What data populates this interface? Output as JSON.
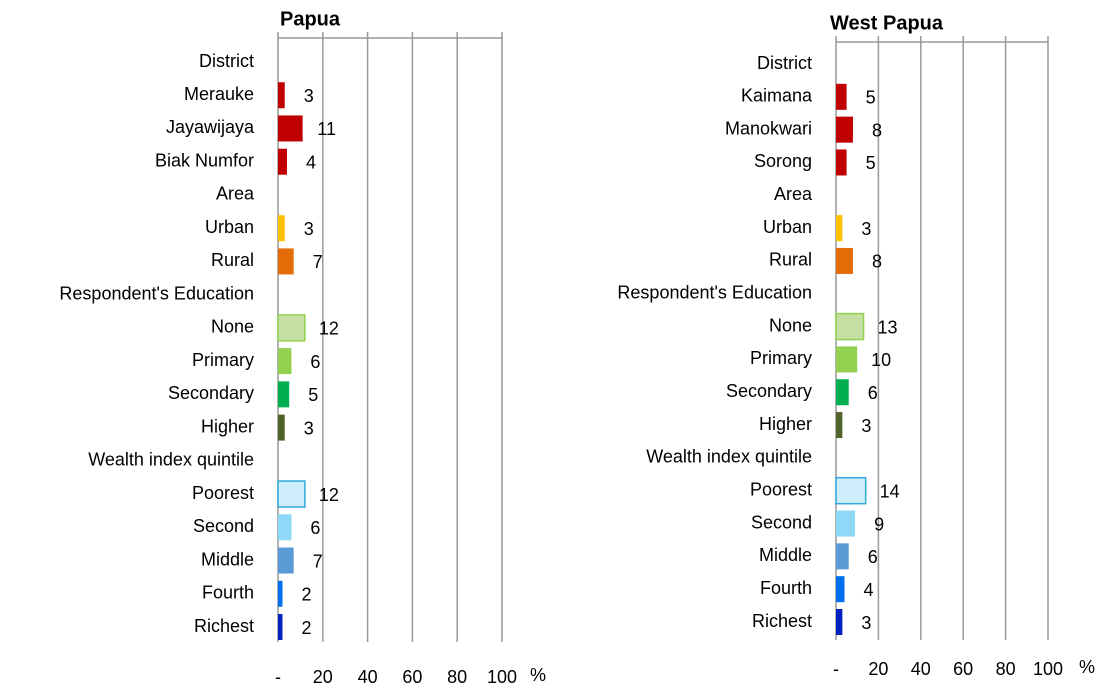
{
  "chart_data": [
    {
      "type": "barh",
      "title": "Papua",
      "categories": [
        "District",
        "Merauke",
        "Jayawijaya",
        "Biak Numfor",
        "Area",
        "Urban",
        "Rural",
        "Respondent's Education",
        "None",
        "Primary",
        "Secondary",
        "Higher",
        "Wealth index quintile",
        "Poorest",
        "Second",
        "Middle",
        "Fourth",
        "Richest"
      ],
      "values": [
        null,
        3,
        11,
        4,
        null,
        3,
        7,
        null,
        12,
        6,
        5,
        3,
        null,
        12,
        6,
        7,
        2,
        2
      ],
      "colors": [
        null,
        "#c00000",
        "#c00000",
        "#c00000",
        null,
        "#ffc000",
        "#e36c09",
        null,
        "#c6e0a4",
        "#92d050",
        "#00b050",
        "#4f6228",
        null,
        "#cdeefa",
        "#8ed8f8",
        "#5b9bd5",
        "#0070f0",
        "#0020c0"
      ],
      "edgecolors": [
        null,
        null,
        null,
        null,
        null,
        null,
        null,
        null,
        "#92d050",
        null,
        null,
        null,
        null,
        "#31a9e0",
        null,
        null,
        null,
        null
      ],
      "xlim": [
        0,
        100
      ],
      "xticks": [
        {
          "value": 0,
          "label": "-"
        },
        20,
        40,
        60,
        80,
        100
      ],
      "xlabel": "%",
      "grid": true
    },
    {
      "type": "barh",
      "title": "West Papua",
      "categories": [
        "District",
        "Kaimana",
        "Manokwari",
        "Sorong",
        "Area",
        "Urban",
        "Rural",
        "Respondent's Education",
        "None",
        "Primary",
        "Secondary",
        "Higher",
        "Wealth index quintile",
        "Poorest",
        "Second",
        "Middle",
        "Fourth",
        "Richest"
      ],
      "values": [
        null,
        5,
        8,
        5,
        null,
        3,
        8,
        null,
        13,
        10,
        6,
        3,
        null,
        14,
        9,
        6,
        4,
        3
      ],
      "colors": [
        null,
        "#c00000",
        "#c00000",
        "#c00000",
        null,
        "#ffc000",
        "#e36c09",
        null,
        "#c6e0a4",
        "#92d050",
        "#00b050",
        "#4f6228",
        null,
        "#cdeefa",
        "#8ed8f8",
        "#5b9bd5",
        "#0070f0",
        "#0020c0"
      ],
      "edgecolors": [
        null,
        null,
        null,
        null,
        null,
        null,
        null,
        null,
        "#92d050",
        null,
        null,
        null,
        null,
        "#31a9e0",
        null,
        null,
        null,
        null
      ],
      "xlim": [
        0,
        100
      ],
      "xticks": [
        {
          "value": 0,
          "label": "-"
        },
        20,
        40,
        60,
        80,
        100
      ],
      "xlabel": "%",
      "grid": true
    }
  ]
}
